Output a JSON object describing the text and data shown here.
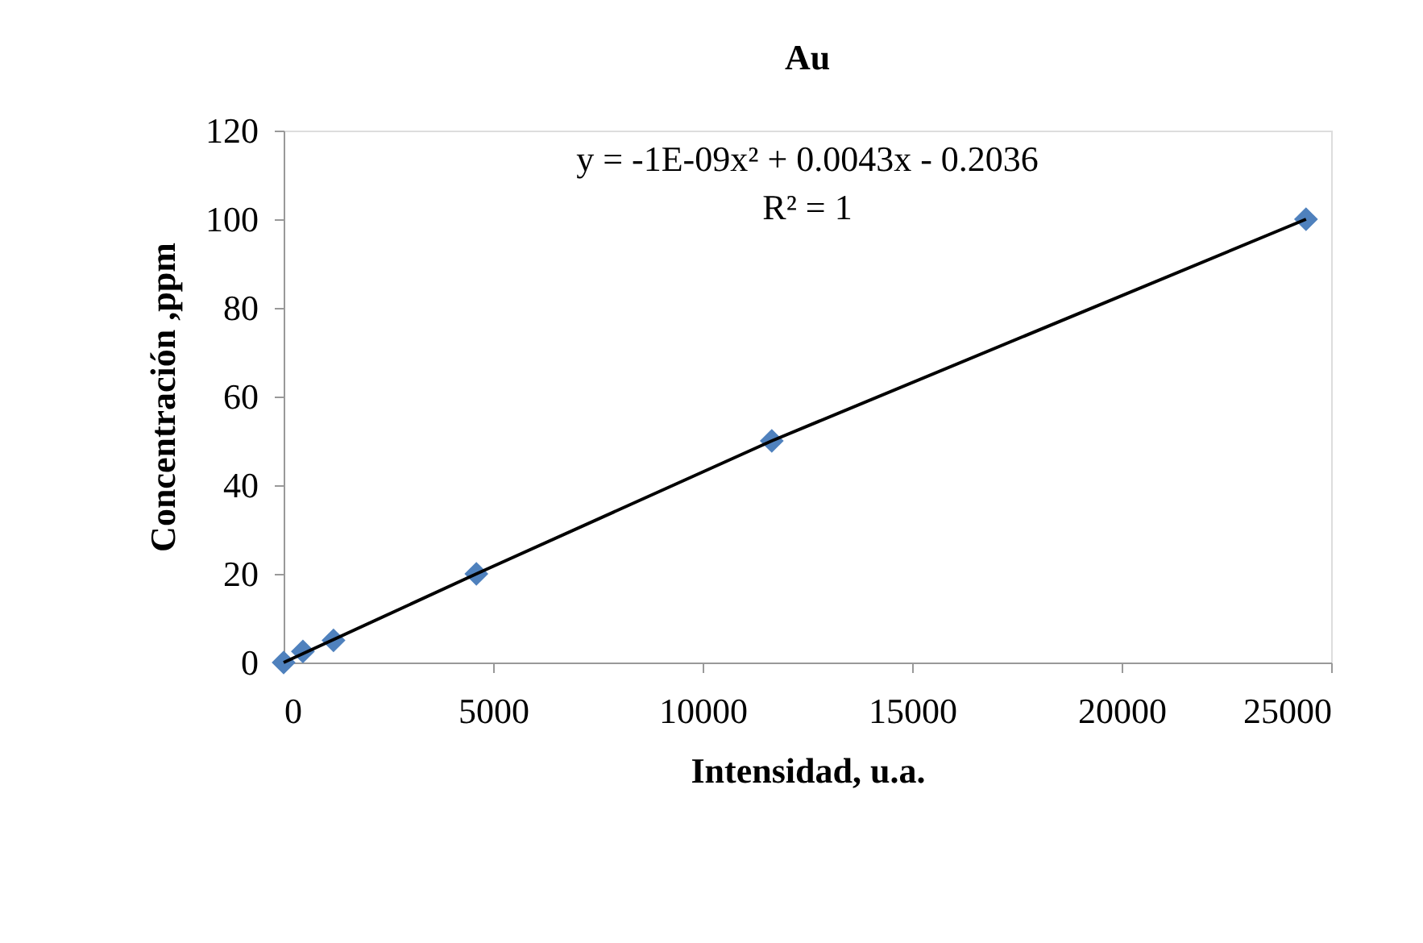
{
  "chart_data": {
    "type": "scatter",
    "title": "Au",
    "xlabel": "Intensidad, u.a.",
    "ylabel": "Concentración ,ppm",
    "series": [
      {
        "type": "scatter",
        "color": "#4f81bd",
        "marker": "diamond",
        "x": [
          0,
          460,
          1190,
          4600,
          11650,
          24400
        ],
        "values": [
          0,
          2.5,
          5,
          20,
          50,
          100
        ]
      },
      {
        "type": "line",
        "color": "#000000",
        "line_style": "solid",
        "x": [
          0,
          4600,
          11650,
          24400
        ],
        "values": [
          0,
          20,
          50,
          100
        ]
      }
    ],
    "xlim": [
      0,
      25000
    ],
    "xticks": [
      0,
      5000,
      10000,
      15000,
      20000,
      25000
    ],
    "ylim": [
      0,
      120
    ],
    "yticks": [
      0,
      20,
      40,
      60,
      80,
      100,
      120
    ],
    "grid": false,
    "annotations": [
      "y = -1E-09x² + 0.0043x - 0.2036",
      "R² = 1"
    ]
  }
}
